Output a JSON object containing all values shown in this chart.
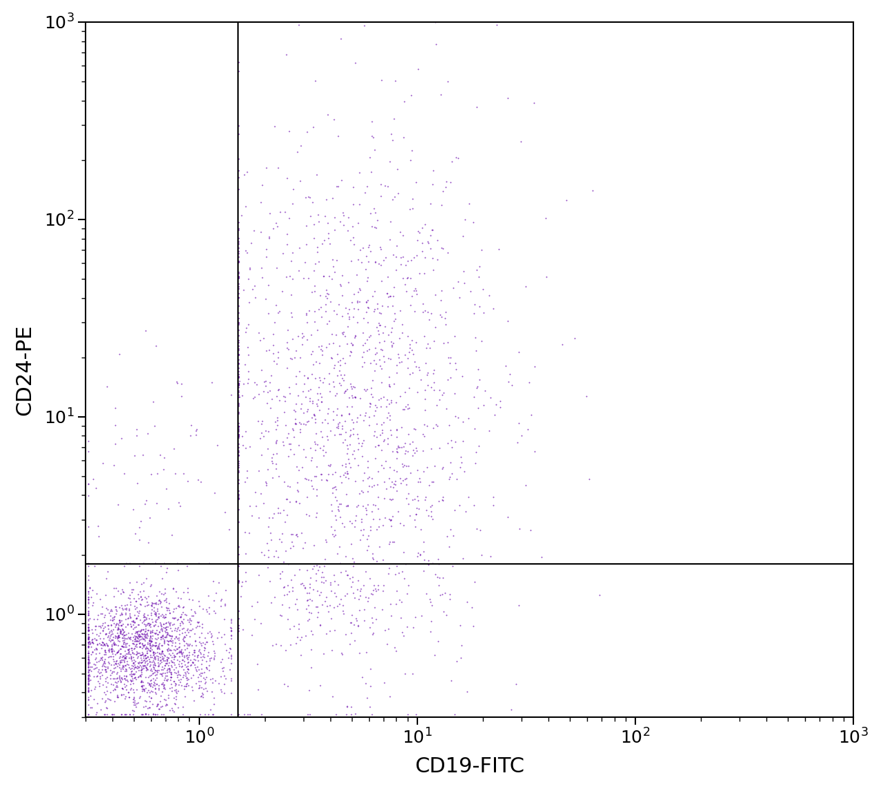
{
  "xlabel": "CD19-FITC",
  "ylabel": "CD24-PE",
  "xlim": [
    0.3,
    1000
  ],
  "ylim": [
    0.3,
    1000
  ],
  "dot_color": "#6600aa",
  "dot_size": 2,
  "dot_alpha": 0.7,
  "gate_line_x": 1.5,
  "gate_line_y": 1.8,
  "background_color": "#ffffff",
  "xlabel_fontsize": 22,
  "ylabel_fontsize": 22,
  "tick_fontsize": 18,
  "seed": 42,
  "n_cluster1": 1800,
  "n_cluster2": 1600
}
